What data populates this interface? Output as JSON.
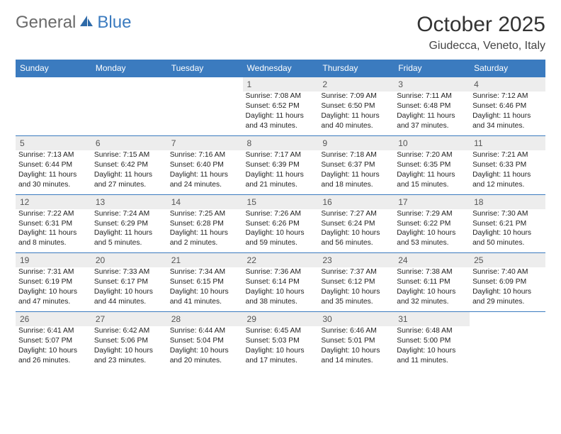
{
  "logo": {
    "general": "General",
    "blue": "Blue"
  },
  "title": "October 2025",
  "location": "Giudecca, Veneto, Italy",
  "dayHeaders": [
    "Sunday",
    "Monday",
    "Tuesday",
    "Wednesday",
    "Thursday",
    "Friday",
    "Saturday"
  ],
  "colors": {
    "headerBg": "#3b7bbf",
    "dayBg": "#ededed",
    "ruleColor": "#3b7bbf"
  },
  "weeks": [
    [
      null,
      null,
      null,
      {
        "n": "1",
        "sr": "Sunrise: 7:08 AM",
        "ss": "Sunset: 6:52 PM",
        "dl1": "Daylight: 11 hours",
        "dl2": "and 43 minutes."
      },
      {
        "n": "2",
        "sr": "Sunrise: 7:09 AM",
        "ss": "Sunset: 6:50 PM",
        "dl1": "Daylight: 11 hours",
        "dl2": "and 40 minutes."
      },
      {
        "n": "3",
        "sr": "Sunrise: 7:11 AM",
        "ss": "Sunset: 6:48 PM",
        "dl1": "Daylight: 11 hours",
        "dl2": "and 37 minutes."
      },
      {
        "n": "4",
        "sr": "Sunrise: 7:12 AM",
        "ss": "Sunset: 6:46 PM",
        "dl1": "Daylight: 11 hours",
        "dl2": "and 34 minutes."
      }
    ],
    [
      {
        "n": "5",
        "sr": "Sunrise: 7:13 AM",
        "ss": "Sunset: 6:44 PM",
        "dl1": "Daylight: 11 hours",
        "dl2": "and 30 minutes."
      },
      {
        "n": "6",
        "sr": "Sunrise: 7:15 AM",
        "ss": "Sunset: 6:42 PM",
        "dl1": "Daylight: 11 hours",
        "dl2": "and 27 minutes."
      },
      {
        "n": "7",
        "sr": "Sunrise: 7:16 AM",
        "ss": "Sunset: 6:40 PM",
        "dl1": "Daylight: 11 hours",
        "dl2": "and 24 minutes."
      },
      {
        "n": "8",
        "sr": "Sunrise: 7:17 AM",
        "ss": "Sunset: 6:39 PM",
        "dl1": "Daylight: 11 hours",
        "dl2": "and 21 minutes."
      },
      {
        "n": "9",
        "sr": "Sunrise: 7:18 AM",
        "ss": "Sunset: 6:37 PM",
        "dl1": "Daylight: 11 hours",
        "dl2": "and 18 minutes."
      },
      {
        "n": "10",
        "sr": "Sunrise: 7:20 AM",
        "ss": "Sunset: 6:35 PM",
        "dl1": "Daylight: 11 hours",
        "dl2": "and 15 minutes."
      },
      {
        "n": "11",
        "sr": "Sunrise: 7:21 AM",
        "ss": "Sunset: 6:33 PM",
        "dl1": "Daylight: 11 hours",
        "dl2": "and 12 minutes."
      }
    ],
    [
      {
        "n": "12",
        "sr": "Sunrise: 7:22 AM",
        "ss": "Sunset: 6:31 PM",
        "dl1": "Daylight: 11 hours",
        "dl2": "and 8 minutes."
      },
      {
        "n": "13",
        "sr": "Sunrise: 7:24 AM",
        "ss": "Sunset: 6:29 PM",
        "dl1": "Daylight: 11 hours",
        "dl2": "and 5 minutes."
      },
      {
        "n": "14",
        "sr": "Sunrise: 7:25 AM",
        "ss": "Sunset: 6:28 PM",
        "dl1": "Daylight: 11 hours",
        "dl2": "and 2 minutes."
      },
      {
        "n": "15",
        "sr": "Sunrise: 7:26 AM",
        "ss": "Sunset: 6:26 PM",
        "dl1": "Daylight: 10 hours",
        "dl2": "and 59 minutes."
      },
      {
        "n": "16",
        "sr": "Sunrise: 7:27 AM",
        "ss": "Sunset: 6:24 PM",
        "dl1": "Daylight: 10 hours",
        "dl2": "and 56 minutes."
      },
      {
        "n": "17",
        "sr": "Sunrise: 7:29 AM",
        "ss": "Sunset: 6:22 PM",
        "dl1": "Daylight: 10 hours",
        "dl2": "and 53 minutes."
      },
      {
        "n": "18",
        "sr": "Sunrise: 7:30 AM",
        "ss": "Sunset: 6:21 PM",
        "dl1": "Daylight: 10 hours",
        "dl2": "and 50 minutes."
      }
    ],
    [
      {
        "n": "19",
        "sr": "Sunrise: 7:31 AM",
        "ss": "Sunset: 6:19 PM",
        "dl1": "Daylight: 10 hours",
        "dl2": "and 47 minutes."
      },
      {
        "n": "20",
        "sr": "Sunrise: 7:33 AM",
        "ss": "Sunset: 6:17 PM",
        "dl1": "Daylight: 10 hours",
        "dl2": "and 44 minutes."
      },
      {
        "n": "21",
        "sr": "Sunrise: 7:34 AM",
        "ss": "Sunset: 6:15 PM",
        "dl1": "Daylight: 10 hours",
        "dl2": "and 41 minutes."
      },
      {
        "n": "22",
        "sr": "Sunrise: 7:36 AM",
        "ss": "Sunset: 6:14 PM",
        "dl1": "Daylight: 10 hours",
        "dl2": "and 38 minutes."
      },
      {
        "n": "23",
        "sr": "Sunrise: 7:37 AM",
        "ss": "Sunset: 6:12 PM",
        "dl1": "Daylight: 10 hours",
        "dl2": "and 35 minutes."
      },
      {
        "n": "24",
        "sr": "Sunrise: 7:38 AM",
        "ss": "Sunset: 6:11 PM",
        "dl1": "Daylight: 10 hours",
        "dl2": "and 32 minutes."
      },
      {
        "n": "25",
        "sr": "Sunrise: 7:40 AM",
        "ss": "Sunset: 6:09 PM",
        "dl1": "Daylight: 10 hours",
        "dl2": "and 29 minutes."
      }
    ],
    [
      {
        "n": "26",
        "sr": "Sunrise: 6:41 AM",
        "ss": "Sunset: 5:07 PM",
        "dl1": "Daylight: 10 hours",
        "dl2": "and 26 minutes."
      },
      {
        "n": "27",
        "sr": "Sunrise: 6:42 AM",
        "ss": "Sunset: 5:06 PM",
        "dl1": "Daylight: 10 hours",
        "dl2": "and 23 minutes."
      },
      {
        "n": "28",
        "sr": "Sunrise: 6:44 AM",
        "ss": "Sunset: 5:04 PM",
        "dl1": "Daylight: 10 hours",
        "dl2": "and 20 minutes."
      },
      {
        "n": "29",
        "sr": "Sunrise: 6:45 AM",
        "ss": "Sunset: 5:03 PM",
        "dl1": "Daylight: 10 hours",
        "dl2": "and 17 minutes."
      },
      {
        "n": "30",
        "sr": "Sunrise: 6:46 AM",
        "ss": "Sunset: 5:01 PM",
        "dl1": "Daylight: 10 hours",
        "dl2": "and 14 minutes."
      },
      {
        "n": "31",
        "sr": "Sunrise: 6:48 AM",
        "ss": "Sunset: 5:00 PM",
        "dl1": "Daylight: 10 hours",
        "dl2": "and 11 minutes."
      },
      null
    ]
  ]
}
